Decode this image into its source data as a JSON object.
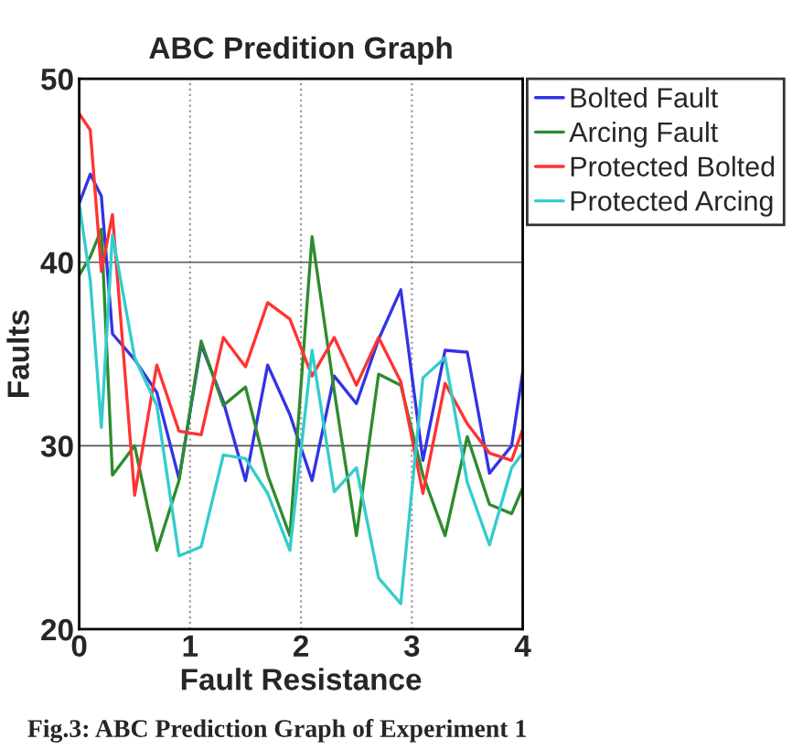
{
  "chart_data": {
    "type": "line",
    "title": "ABC Predition Graph",
    "xlabel": "Fault Resistance",
    "ylabel": "Faults",
    "annotations": [
      "Fig.3: ABC Prediction Graph of Experiment 1"
    ],
    "x": [
      0,
      0.1,
      0.2,
      0.3,
      0.5,
      0.7,
      0.9,
      1.1,
      1.3,
      1.5,
      1.7,
      1.9,
      2.1,
      2.3,
      2.5,
      2.7,
      2.9,
      3.1,
      3.3,
      3.5,
      3.7,
      3.9,
      4.0
    ],
    "series": [
      {
        "name": "Bolted Fault",
        "color": "#3333e6",
        "values": [
          43.2,
          44.8,
          43.6,
          36.1,
          34.7,
          32.9,
          28.2,
          35.5,
          32.4,
          28.1,
          34.4,
          31.7,
          28.1,
          33.8,
          32.3,
          35.8,
          38.5,
          29.2,
          35.2,
          35.1,
          28.5,
          30.0,
          34.0
        ]
      },
      {
        "name": "Arcing Fault",
        "color": "#2e8b2e",
        "values": [
          39.3,
          40.3,
          41.8,
          28.4,
          30.0,
          24.3,
          28.1,
          35.7,
          32.2,
          33.2,
          28.4,
          25.1,
          41.4,
          33.0,
          25.1,
          33.9,
          33.3,
          28.4,
          25.1,
          30.5,
          26.8,
          26.3,
          27.7
        ]
      },
      {
        "name": "Protected Bolted",
        "color": "#ff3333",
        "values": [
          48.1,
          47.2,
          39.5,
          42.6,
          27.3,
          34.4,
          30.8,
          30.6,
          35.9,
          34.3,
          37.8,
          36.9,
          33.8,
          35.9,
          33.3,
          35.9,
          33.5,
          27.4,
          33.4,
          31.2,
          29.6,
          29.2,
          30.9
        ]
      },
      {
        "name": "Protected Arcing",
        "color": "#33cccc",
        "values": [
          43.2,
          39.0,
          31.0,
          41.5,
          34.8,
          32.2,
          24.0,
          24.5,
          29.5,
          29.3,
          27.4,
          24.3,
          35.2,
          27.5,
          28.8,
          22.8,
          21.4,
          33.7,
          34.8,
          28.0,
          24.6,
          28.8,
          29.6
        ]
      }
    ],
    "xlim": [
      0,
      4
    ],
    "ylim": [
      20,
      50
    ],
    "xticks": [
      0,
      1,
      2,
      3,
      4
    ],
    "yticks": [
      20,
      30,
      40,
      50
    ],
    "grid": true,
    "legend": "top right",
    "line_style": "solid",
    "marker": "none"
  }
}
